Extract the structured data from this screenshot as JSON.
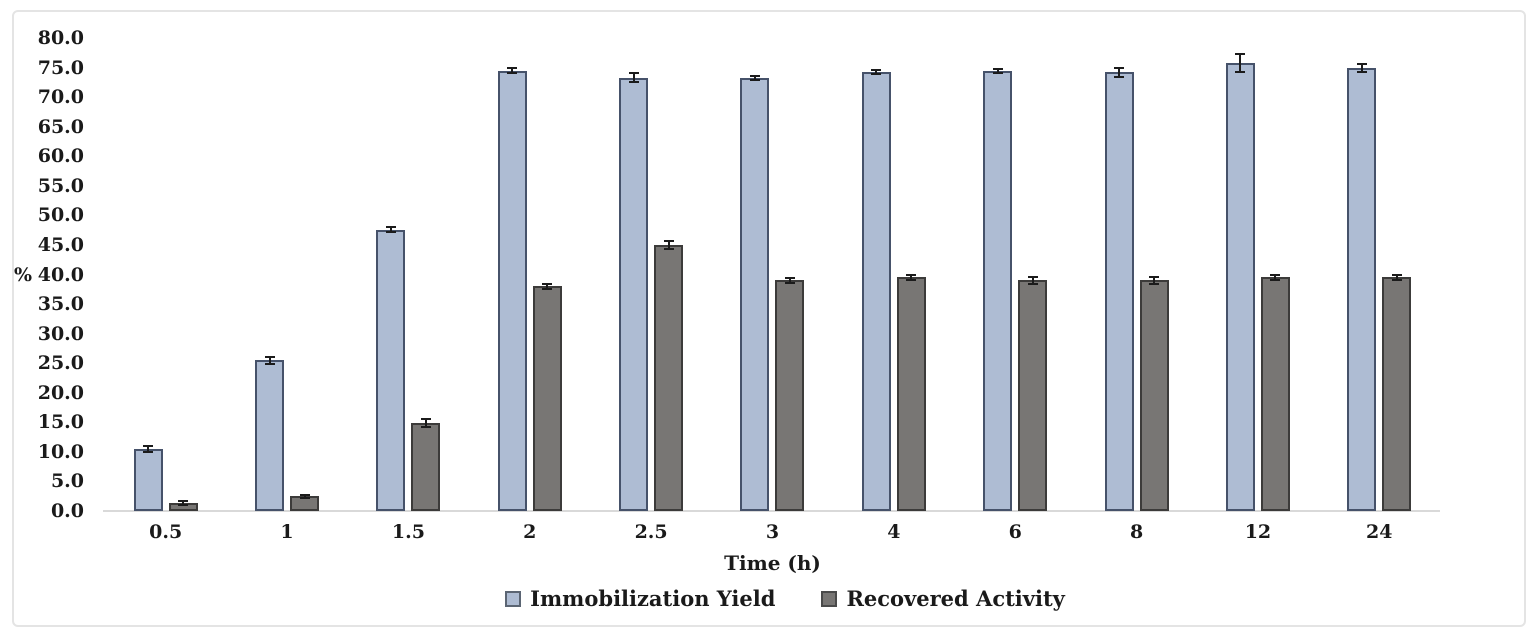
{
  "figure": {
    "border_color": "#e4e4e4",
    "background": "#ffffff",
    "axis_line_color": "#d9d9d9",
    "error_bar_color": "#1b1b1b"
  },
  "chart_data": {
    "type": "bar",
    "title": "",
    "xlabel": "Time (h)",
    "ylabel": "%",
    "ylim": [
      0,
      80
    ],
    "ytick_step": 5,
    "yticks": [
      "0.0",
      "5.0",
      "10.0",
      "15.0",
      "20.0",
      "25.0",
      "30.0",
      "35.0",
      "40.0",
      "45.0",
      "50.0",
      "55.0",
      "60.0",
      "65.0",
      "70.0",
      "75.0",
      "80.0"
    ],
    "grid": false,
    "legend_position": "bottom-center",
    "categories": [
      "0.5",
      "1",
      "1.5",
      "2",
      "2.5",
      "3",
      "4",
      "6",
      "8",
      "12",
      "24"
    ],
    "series": [
      {
        "name": "Immobilization Yield",
        "color": "#AEBCD3",
        "border_color": "#46526A",
        "values": [
          10.5,
          25.5,
          47.6,
          74.5,
          73.3,
          73.2,
          74.2,
          74.4,
          74.2,
          75.7,
          74.9
        ],
        "errors": [
          0.7,
          0.8,
          0.6,
          0.6,
          0.9,
          0.5,
          0.5,
          0.5,
          0.9,
          1.7,
          0.8
        ]
      },
      {
        "name": "Recovered Activity",
        "color": "#787674",
        "border_color": "#3C3B3A",
        "values": [
          1.4,
          2.5,
          14.9,
          38.0,
          45.0,
          39.0,
          39.5,
          39.0,
          39.0,
          39.5,
          39.5
        ],
        "errors": [
          0.5,
          0.4,
          0.8,
          0.6,
          0.8,
          0.6,
          0.6,
          0.7,
          0.7,
          0.6,
          0.6
        ]
      }
    ]
  }
}
